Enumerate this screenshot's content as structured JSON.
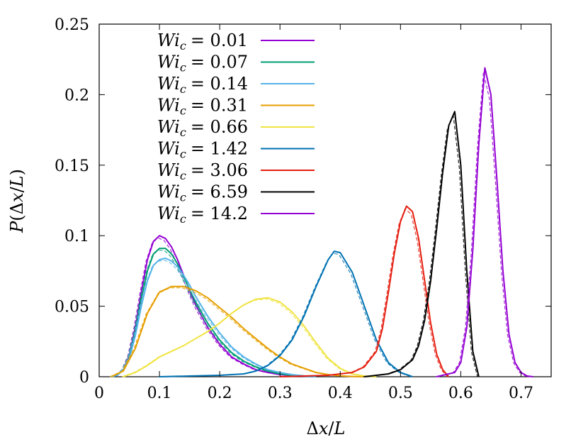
{
  "chart_data": {
    "type": "line",
    "title": "",
    "xlabel": "Δx/L",
    "ylabel": "P(Δx/L)",
    "xlim": [
      0,
      0.75
    ],
    "ylim": [
      0,
      0.25
    ],
    "xticks": [
      0,
      0.1,
      0.2,
      0.3,
      0.4,
      0.5,
      0.6,
      0.7
    ],
    "xtick_labels": [
      "0",
      "0.1",
      "0.2",
      "0.3",
      "0.4",
      "0.5",
      "0.6",
      "0.7"
    ],
    "yticks": [
      0,
      0.05,
      0.1,
      0.15,
      0.2,
      0.25
    ],
    "ytick_labels": [
      "0",
      "0.05",
      "0.1",
      "0.15",
      "0.2",
      "0.25"
    ],
    "grid": false,
    "legend_position": "top-left",
    "series": [
      {
        "label_var": "Wi",
        "label_sub": "c",
        "label_val": "= 0.01",
        "color": "#9400d3",
        "x": [
          0.02,
          0.03,
          0.04,
          0.05,
          0.06,
          0.07,
          0.08,
          0.09,
          0.1,
          0.11,
          0.12,
          0.13,
          0.14,
          0.15,
          0.16,
          0.18,
          0.2,
          0.22,
          0.24,
          0.26,
          0.28,
          0.3,
          0.32,
          0.34,
          0.36
        ],
        "y": [
          0,
          0.001,
          0.005,
          0.015,
          0.035,
          0.06,
          0.083,
          0.096,
          0.1,
          0.098,
          0.092,
          0.083,
          0.072,
          0.061,
          0.051,
          0.035,
          0.023,
          0.014,
          0.009,
          0.005,
          0.003,
          0.0015,
          0.0008,
          0.0003,
          0
        ]
      },
      {
        "label_var": "Wi",
        "label_sub": "c",
        "label_val": "= 0.07",
        "color": "#009e73",
        "x": [
          0.02,
          0.03,
          0.04,
          0.05,
          0.06,
          0.07,
          0.08,
          0.09,
          0.1,
          0.11,
          0.12,
          0.13,
          0.14,
          0.15,
          0.16,
          0.18,
          0.2,
          0.22,
          0.24,
          0.26,
          0.28,
          0.3,
          0.32,
          0.34,
          0.36
        ],
        "y": [
          0,
          0.001,
          0.005,
          0.014,
          0.032,
          0.055,
          0.075,
          0.087,
          0.091,
          0.091,
          0.087,
          0.08,
          0.071,
          0.062,
          0.053,
          0.038,
          0.026,
          0.017,
          0.011,
          0.007,
          0.004,
          0.002,
          0.001,
          0.0004,
          0
        ]
      },
      {
        "label_var": "Wi",
        "label_sub": "c",
        "label_val": "= 0.14",
        "color": "#56b4e9",
        "x": [
          0.02,
          0.03,
          0.04,
          0.05,
          0.06,
          0.07,
          0.08,
          0.09,
          0.1,
          0.11,
          0.12,
          0.13,
          0.14,
          0.15,
          0.16,
          0.18,
          0.2,
          0.22,
          0.24,
          0.26,
          0.28,
          0.3,
          0.32,
          0.34,
          0.36
        ],
        "y": [
          0,
          0.001,
          0.005,
          0.013,
          0.029,
          0.05,
          0.068,
          0.079,
          0.083,
          0.084,
          0.082,
          0.078,
          0.072,
          0.065,
          0.057,
          0.043,
          0.031,
          0.021,
          0.014,
          0.009,
          0.005,
          0.003,
          0.0015,
          0.0006,
          0
        ]
      },
      {
        "label_var": "Wi",
        "label_sub": "c",
        "label_val": "= 0.31",
        "color": "#e69f00",
        "x": [
          0.02,
          0.04,
          0.06,
          0.08,
          0.1,
          0.12,
          0.14,
          0.16,
          0.18,
          0.2,
          0.22,
          0.24,
          0.26,
          0.28,
          0.3,
          0.32,
          0.34,
          0.36,
          0.38,
          0.4,
          0.42,
          0.44
        ],
        "y": [
          0,
          0.004,
          0.02,
          0.045,
          0.06,
          0.064,
          0.064,
          0.061,
          0.056,
          0.049,
          0.042,
          0.034,
          0.027,
          0.02,
          0.014,
          0.009,
          0.006,
          0.003,
          0.0015,
          0.0006,
          0.0002,
          0
        ]
      },
      {
        "label_var": "Wi",
        "label_sub": "c",
        "label_val": "= 0.66",
        "color": "#f0e442",
        "x": [
          0.04,
          0.06,
          0.08,
          0.1,
          0.12,
          0.14,
          0.16,
          0.18,
          0.2,
          0.22,
          0.24,
          0.26,
          0.28,
          0.3,
          0.32,
          0.34,
          0.36,
          0.38,
          0.4,
          0.42,
          0.44,
          0.46
        ],
        "y": [
          0,
          0.003,
          0.008,
          0.014,
          0.018,
          0.022,
          0.027,
          0.032,
          0.038,
          0.045,
          0.051,
          0.055,
          0.056,
          0.053,
          0.046,
          0.036,
          0.024,
          0.013,
          0.006,
          0.002,
          0.0005,
          0
        ]
      },
      {
        "label_var": "Wi",
        "label_sub": "c",
        "label_val": "= 1.42",
        "color": "#0072b2",
        "x": [
          0.1,
          0.15,
          0.2,
          0.24,
          0.26,
          0.28,
          0.3,
          0.32,
          0.34,
          0.36,
          0.38,
          0.39,
          0.4,
          0.42,
          0.44,
          0.46,
          0.48,
          0.5,
          0.52
        ],
        "y": [
          0,
          0.0005,
          0.001,
          0.002,
          0.004,
          0.008,
          0.015,
          0.026,
          0.043,
          0.064,
          0.083,
          0.089,
          0.088,
          0.074,
          0.05,
          0.026,
          0.01,
          0.003,
          0
        ]
      },
      {
        "label_var": "Wi",
        "label_sub": "c",
        "label_val": "= 3.06",
        "color": "#e51e10",
        "x": [
          0.3,
          0.38,
          0.42,
          0.44,
          0.46,
          0.47,
          0.48,
          0.49,
          0.5,
          0.51,
          0.52,
          0.53,
          0.54,
          0.55,
          0.56,
          0.57,
          0.58
        ],
        "y": [
          0,
          0.001,
          0.003,
          0.007,
          0.018,
          0.034,
          0.06,
          0.088,
          0.11,
          0.121,
          0.117,
          0.098,
          0.068,
          0.038,
          0.016,
          0.005,
          0
        ]
      },
      {
        "label_var": "Wi",
        "label_sub": "c",
        "label_val": "= 6.59",
        "color": "#000000",
        "x": [
          0.44,
          0.48,
          0.5,
          0.52,
          0.53,
          0.54,
          0.55,
          0.56,
          0.57,
          0.58,
          0.59,
          0.6,
          0.61,
          0.62,
          0.63
        ],
        "y": [
          0,
          0.002,
          0.005,
          0.012,
          0.022,
          0.04,
          0.068,
          0.105,
          0.145,
          0.178,
          0.188,
          0.15,
          0.075,
          0.018,
          0
        ]
      },
      {
        "label_var": "Wi",
        "label_sub": "c",
        "label_val": "= 14.2",
        "color": "#9400d3",
        "x": [
          0.56,
          0.59,
          0.6,
          0.61,
          0.62,
          0.63,
          0.64,
          0.65,
          0.66,
          0.67,
          0.68,
          0.69,
          0.7,
          0.71,
          0.72
        ],
        "y": [
          0,
          0.003,
          0.01,
          0.035,
          0.09,
          0.165,
          0.219,
          0.2,
          0.14,
          0.075,
          0.03,
          0.01,
          0.003,
          0.0005,
          0
        ]
      }
    ]
  }
}
